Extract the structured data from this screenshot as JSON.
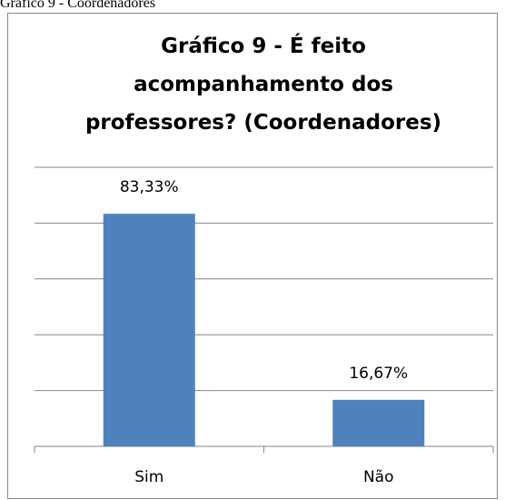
{
  "caption": "Gráfico 9 - Coordenadores",
  "chart_data": {
    "type": "bar",
    "title": [
      "Gráfico 9 - É feito",
      "acompanhamento dos",
      "professores? (Coordenadores)"
    ],
    "categories": [
      "Sim",
      "Não"
    ],
    "values": [
      83.33,
      16.67
    ],
    "value_labels": [
      "83,33%",
      "16,67%"
    ],
    "color": "#4f81bd",
    "ylim": [
      0,
      100
    ],
    "yticks": [
      0,
      20,
      40,
      60,
      80,
      100
    ],
    "grid": true
  }
}
